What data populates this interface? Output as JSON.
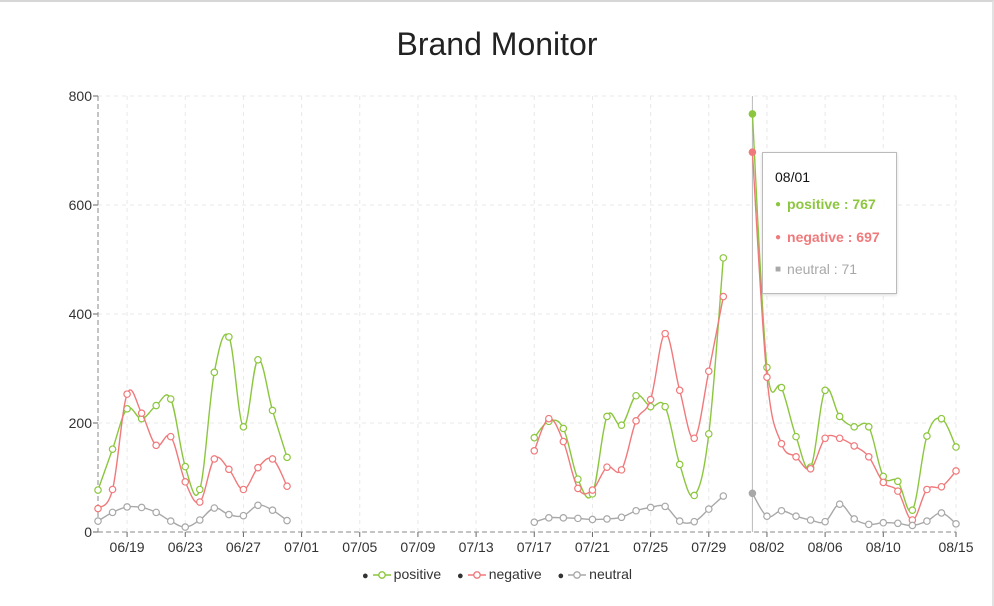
{
  "chart_data": {
    "type": "line",
    "title": "Brand Monitor",
    "xlabel": "",
    "ylabel": "",
    "ylim": [
      0,
      800
    ],
    "yticks": [
      "0",
      "200",
      "400",
      "600",
      "800"
    ],
    "xticks": [
      "06/19",
      "06/23",
      "06/27",
      "07/01",
      "07/05",
      "07/09",
      "07/13",
      "07/17",
      "07/21",
      "07/25",
      "07/29",
      "08/02",
      "08/06",
      "08/10",
      "08/15"
    ],
    "x_start": "06/17",
    "x_end": "08/15",
    "grid": true,
    "legend": "bottom",
    "series": [
      {
        "name": "positive",
        "color": "#8cc63e",
        "points": [
          [
            "06/17",
            77
          ],
          [
            "06/18",
            152
          ],
          [
            "06/19",
            226
          ],
          [
            "06/20",
            208
          ],
          [
            "06/21",
            232
          ],
          [
            "06/22",
            244
          ],
          [
            "06/23",
            120
          ],
          [
            "06/24",
            78
          ],
          [
            "06/25",
            293
          ],
          [
            "06/26",
            358
          ],
          [
            "06/27",
            193
          ],
          [
            "06/28",
            316
          ],
          [
            "06/29",
            223
          ],
          [
            "06/30",
            137
          ],
          [
            "07/17",
            173
          ],
          [
            "07/18",
            203
          ],
          [
            "07/19",
            190
          ],
          [
            "07/20",
            97
          ],
          [
            "07/21",
            70
          ],
          [
            "07/22",
            212
          ],
          [
            "07/23",
            196
          ],
          [
            "07/24",
            250
          ],
          [
            "07/25",
            230
          ],
          [
            "07/26",
            230
          ],
          [
            "07/27",
            124
          ],
          [
            "07/28",
            67
          ],
          [
            "07/29",
            180
          ],
          [
            "07/30",
            503
          ],
          [
            "08/01",
            767
          ],
          [
            "08/02",
            302
          ],
          [
            "08/03",
            265
          ],
          [
            "08/04",
            175
          ],
          [
            "08/05",
            119
          ],
          [
            "08/06",
            260
          ],
          [
            "08/07",
            212
          ],
          [
            "08/08",
            193
          ],
          [
            "08/09",
            193
          ],
          [
            "08/10",
            102
          ],
          [
            "08/11",
            93
          ],
          [
            "08/12",
            40
          ],
          [
            "08/13",
            176
          ],
          [
            "08/14",
            208
          ],
          [
            "08/15",
            156
          ]
        ]
      },
      {
        "name": "negative",
        "color": "#f0797b",
        "points": [
          [
            "06/17",
            43
          ],
          [
            "06/18",
            78
          ],
          [
            "06/19",
            253
          ],
          [
            "06/20",
            218
          ],
          [
            "06/21",
            159
          ],
          [
            "06/22",
            175
          ],
          [
            "06/23",
            92
          ],
          [
            "06/24",
            55
          ],
          [
            "06/25",
            134
          ],
          [
            "06/26",
            115
          ],
          [
            "06/27",
            78
          ],
          [
            "06/28",
            118
          ],
          [
            "06/29",
            134
          ],
          [
            "06/30",
            84
          ],
          [
            "07/17",
            149
          ],
          [
            "07/18",
            208
          ],
          [
            "07/19",
            166
          ],
          [
            "07/20",
            80
          ],
          [
            "07/21",
            77
          ],
          [
            "07/22",
            119
          ],
          [
            "07/23",
            114
          ],
          [
            "07/24",
            204
          ],
          [
            "07/25",
            243
          ],
          [
            "07/26",
            364
          ],
          [
            "07/27",
            260
          ],
          [
            "07/28",
            172
          ],
          [
            "07/29",
            295
          ],
          [
            "07/30",
            432
          ],
          [
            "08/01",
            697
          ],
          [
            "08/02",
            284
          ],
          [
            "08/03",
            162
          ],
          [
            "08/04",
            138
          ],
          [
            "08/05",
            116
          ],
          [
            "08/06",
            172
          ],
          [
            "08/07",
            172
          ],
          [
            "08/08",
            158
          ],
          [
            "08/09",
            138
          ],
          [
            "08/10",
            91
          ],
          [
            "08/11",
            75
          ],
          [
            "08/12",
            22
          ],
          [
            "08/13",
            78
          ],
          [
            "08/14",
            83
          ],
          [
            "08/15",
            112
          ]
        ]
      },
      {
        "name": "neutral",
        "color": "#a8a8a8",
        "points": [
          [
            "06/17",
            20
          ],
          [
            "06/18",
            36
          ],
          [
            "06/19",
            46
          ],
          [
            "06/20",
            45
          ],
          [
            "06/21",
            36
          ],
          [
            "06/22",
            20
          ],
          [
            "06/23",
            9
          ],
          [
            "06/24",
            22
          ],
          [
            "06/25",
            44
          ],
          [
            "06/26",
            32
          ],
          [
            "06/27",
            30
          ],
          [
            "06/28",
            49
          ],
          [
            "06/29",
            40
          ],
          [
            "06/30",
            21
          ],
          [
            "07/17",
            18
          ],
          [
            "07/18",
            26
          ],
          [
            "07/19",
            26
          ],
          [
            "07/20",
            25
          ],
          [
            "07/21",
            23
          ],
          [
            "07/22",
            24
          ],
          [
            "07/23",
            27
          ],
          [
            "07/24",
            39
          ],
          [
            "07/25",
            45
          ],
          [
            "07/26",
            47
          ],
          [
            "07/27",
            20
          ],
          [
            "07/28",
            19
          ],
          [
            "07/29",
            42
          ],
          [
            "07/30",
            66
          ],
          [
            "08/01",
            71
          ],
          [
            "08/02",
            29
          ],
          [
            "08/03",
            39
          ],
          [
            "08/04",
            29
          ],
          [
            "08/05",
            22
          ],
          [
            "08/06",
            19
          ],
          [
            "08/07",
            51
          ],
          [
            "08/08",
            24
          ],
          [
            "08/09",
            14
          ],
          [
            "08/10",
            17
          ],
          [
            "08/11",
            16
          ],
          [
            "08/12",
            12
          ],
          [
            "08/13",
            20
          ],
          [
            "08/14",
            35
          ],
          [
            "08/15",
            15
          ]
        ]
      }
    ],
    "tooltip": {
      "date": "08/01",
      "positive": "positive : 767",
      "negative": "negative : 697",
      "neutral": "neutral : 71"
    }
  },
  "legend": {
    "positive": "positive",
    "negative": "negative",
    "neutral": "neutral"
  }
}
